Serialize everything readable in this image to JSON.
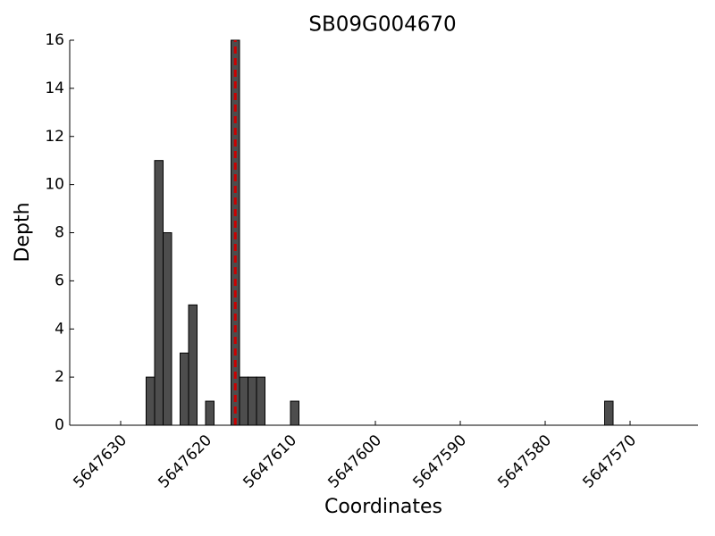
{
  "chart_data": {
    "type": "histogram",
    "title": "SB09G004670",
    "x_label": "Coordinates",
    "y_label": "Depth",
    "bins": [
      5647627,
      5647626,
      5647625,
      5647624,
      5647623,
      5647622,
      5647621,
      5647620,
      5647619,
      5647618,
      5647617,
      5647616,
      5647615,
      5647614,
      5647613,
      5647612,
      5647611,
      5647610,
      5647609,
      5647608,
      5647607,
      5647606,
      5647605,
      5647604,
      5647603,
      5647602,
      5647601,
      5647600,
      5647599,
      5647598,
      5647597,
      5647596,
      5647595,
      5647594,
      5647593,
      5647592,
      5647591,
      5647590,
      5647589,
      5647588,
      5647587,
      5647586,
      5647585,
      5647584,
      5647583,
      5647582,
      5647581,
      5647580,
      5647579,
      5647578,
      5647577,
      5647576,
      5647575,
      5647574,
      5647573,
      5647572
    ],
    "values": [
      2,
      11,
      8,
      0,
      3,
      5,
      0,
      1,
      0,
      0,
      16,
      2,
      2,
      2,
      0,
      0,
      0,
      1,
      0,
      0,
      0,
      0,
      0,
      0,
      0,
      0,
      0,
      0,
      0,
      0,
      0,
      0,
      0,
      0,
      0,
      0,
      0,
      0,
      0,
      0,
      0,
      0,
      0,
      0,
      0,
      0,
      0,
      0,
      0,
      0,
      0,
      0,
      0,
      0,
      1
    ],
    "color": "#4d4d4d",
    "vline": {
      "x": 5647616.5,
      "color": "#cc0000"
    },
    "xlim": [
      5647636,
      5647562
    ],
    "xticks": [
      5647630,
      5647620,
      5647610,
      5647600,
      5647590,
      5647580,
      5647570
    ],
    "ylim": [
      0,
      16
    ],
    "yticks": [
      0,
      2,
      4,
      6,
      8,
      10,
      12,
      14,
      16
    ]
  }
}
